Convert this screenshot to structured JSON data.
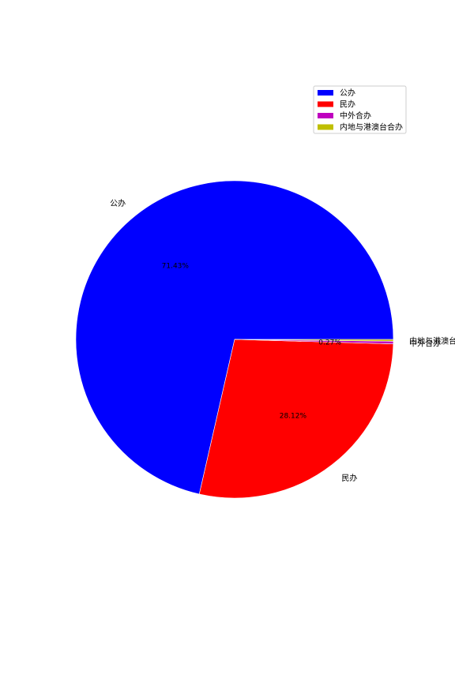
{
  "chart_data": {
    "type": "pie",
    "slices": [
      {
        "label": "公办",
        "value": 71.43,
        "pct_text": "71.43%",
        "color": "#0000ff"
      },
      {
        "label": "民办",
        "value": 28.12,
        "pct_text": "28.12%",
        "color": "#ff0000"
      },
      {
        "label": "中外合办",
        "value": 0.27,
        "pct_text": "0.27%",
        "color": "#bf00bf"
      },
      {
        "label": "内地与港澳台合办",
        "value": 0.18,
        "pct_text": "",
        "color": "#bfbf00"
      }
    ],
    "legend": {
      "placement": "top-right",
      "entries": [
        "公办",
        "民办",
        "中外合办",
        "内地与港澳台合办"
      ]
    },
    "start_angle_deg": 0,
    "direction": "counterclockwise"
  }
}
